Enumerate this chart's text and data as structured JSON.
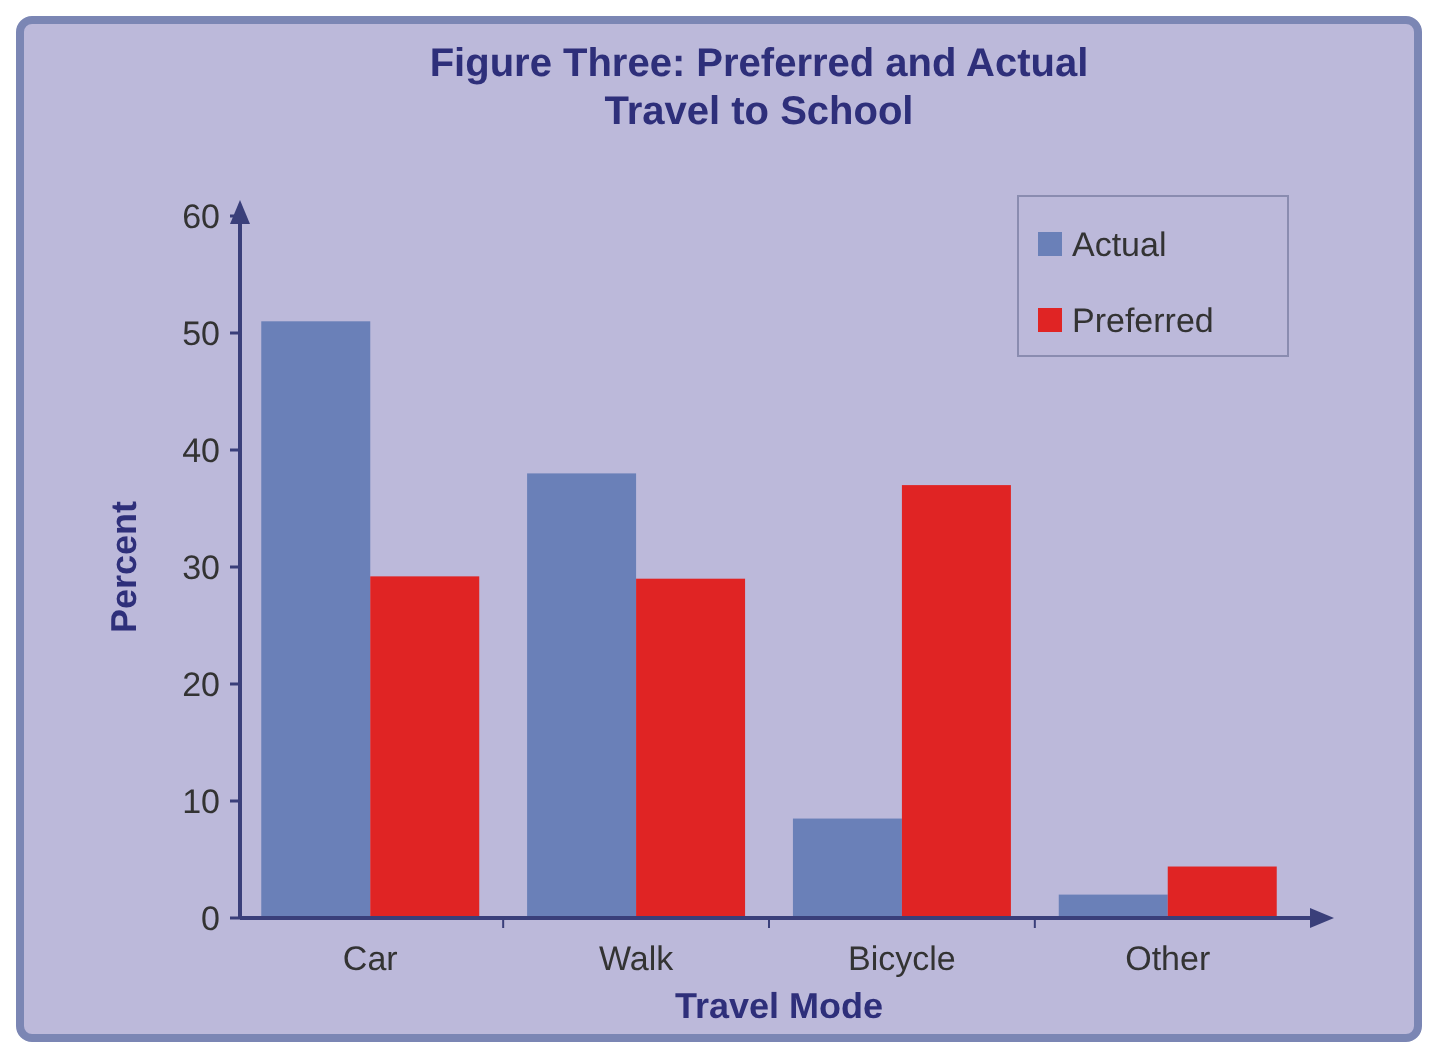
{
  "chart_data": {
    "type": "bar",
    "title": "Figure Three: Preferred and Actual Travel to School",
    "xlabel": "Travel Mode",
    "ylabel": "Percent",
    "categories": [
      "Car",
      "Walk",
      "Bicycle",
      "Other"
    ],
    "series": [
      {
        "name": "Actual",
        "color": "#6a80b8",
        "values": [
          51,
          38,
          8.5,
          2
        ]
      },
      {
        "name": "Preferred",
        "color": "#e02424",
        "values": [
          29.2,
          29,
          37,
          4.4
        ]
      }
    ],
    "ylim": [
      0,
      60
    ],
    "yticks": [
      0,
      10,
      20,
      30,
      40,
      50,
      60
    ],
    "grid": false,
    "legend": "top right"
  }
}
